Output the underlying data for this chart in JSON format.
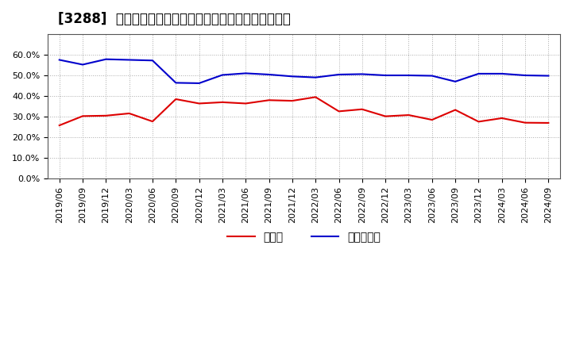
{
  "title": "[3288]  現預金、有利子負債の総資産に対する比率の推移",
  "x_labels": [
    "2019/06",
    "2019/09",
    "2019/12",
    "2020/03",
    "2020/06",
    "2020/09",
    "2020/12",
    "2021/03",
    "2021/06",
    "2021/09",
    "2021/12",
    "2022/03",
    "2022/06",
    "2022/09",
    "2022/12",
    "2023/03",
    "2023/06",
    "2023/09",
    "2023/12",
    "2024/03",
    "2024/06",
    "2024/09"
  ],
  "cash_ratio": [
    0.258,
    0.303,
    0.305,
    0.316,
    0.277,
    0.385,
    0.364,
    0.37,
    0.364,
    0.38,
    0.377,
    0.395,
    0.326,
    0.336,
    0.302,
    0.308,
    0.285,
    0.333,
    0.276,
    0.293,
    0.271,
    0.27
  ],
  "debt_ratio": [
    0.575,
    0.552,
    0.578,
    0.575,
    0.572,
    0.464,
    0.462,
    0.502,
    0.51,
    0.504,
    0.495,
    0.49,
    0.504,
    0.506,
    0.5,
    0.5,
    0.498,
    0.47,
    0.508,
    0.508,
    0.5,
    0.498
  ],
  "cash_color": "#dd0000",
  "debt_color": "#0000cc",
  "background_color": "#ffffff",
  "plot_bg_color": "#ffffff",
  "grid_color": "#aaaaaa",
  "ylim": [
    0.0,
    0.7
  ],
  "yticks": [
    0.0,
    0.1,
    0.2,
    0.3,
    0.4,
    0.5,
    0.6
  ],
  "legend_cash": "現預金",
  "legend_debt": "有利子負債",
  "title_fontsize": 12,
  "axis_fontsize": 8,
  "legend_fontsize": 10
}
